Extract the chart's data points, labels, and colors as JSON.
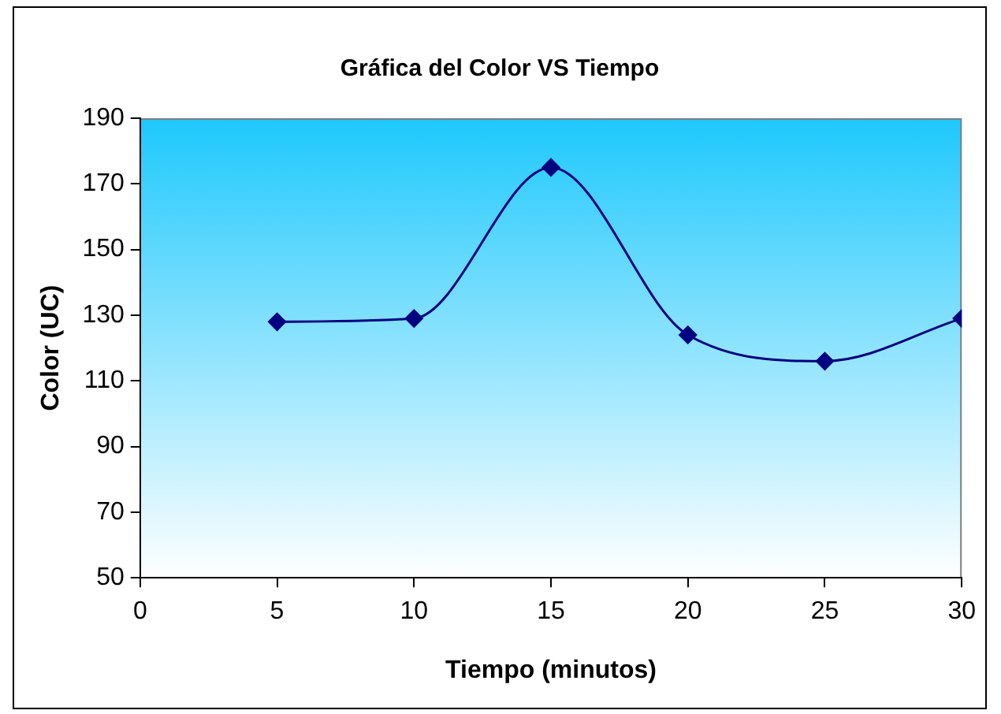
{
  "chart_data": {
    "type": "line",
    "title": "Gráfica del Color VS Tiempo",
    "xlabel": "Tiempo (minutos)",
    "ylabel": "Color (UC)",
    "x": [
      5,
      10,
      15,
      20,
      25,
      30
    ],
    "series": [
      {
        "color": "#000080",
        "values": [
          128,
          129,
          175,
          124,
          116,
          129
        ]
      }
    ],
    "xlim": [
      0,
      30
    ],
    "xticks": [
      0,
      5,
      10,
      15,
      20,
      25,
      30
    ],
    "ylim": [
      50,
      190
    ],
    "yticks": [
      50,
      70,
      90,
      110,
      130,
      150,
      170,
      190
    ],
    "grid": false,
    "legend": false,
    "marker": "diamond",
    "line_style": "solid"
  }
}
